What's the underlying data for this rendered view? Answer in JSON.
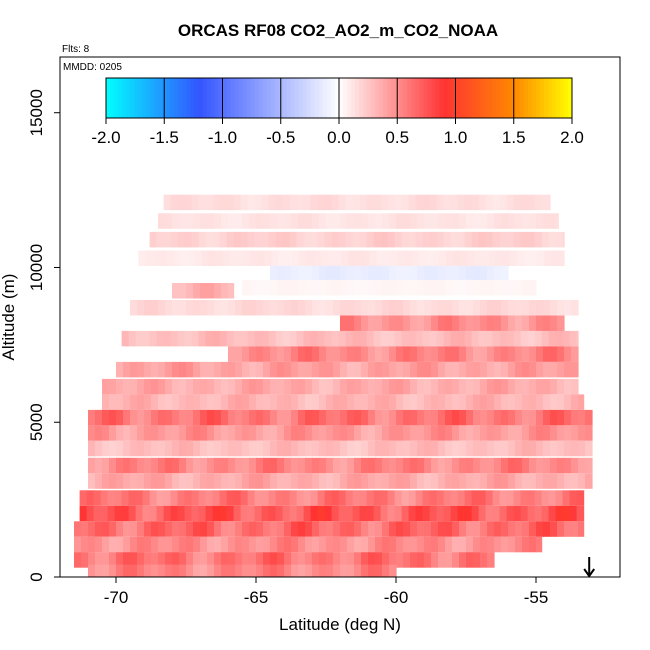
{
  "chart_data": {
    "type": "heatmap",
    "title": "ORCAS RF08 CO2_AO2_m_CO2_NOAA",
    "flights_label": "Flts: 8",
    "date_label": "MMDD: 0205",
    "xlabel": "Latitude (deg N)",
    "ylabel": "Altitude (m)",
    "xlim": [
      -72.0,
      -52.0
    ],
    "ylim": [
      0,
      16800
    ],
    "x_ticks": [
      -70,
      -65,
      -60,
      -55
    ],
    "x_tick_labels": [
      "-70",
      "-65",
      "-60",
      "-55"
    ],
    "y_ticks": [
      0,
      5000,
      10000,
      15000
    ],
    "y_tick_labels": [
      "0",
      "5000",
      "10000",
      "15000"
    ],
    "colorbar": {
      "range": [
        -2.0,
        2.0
      ],
      "ticks": [
        -2.0,
        -1.5,
        -1.0,
        -0.5,
        0.0,
        0.5,
        1.0,
        1.5,
        2.0
      ],
      "tick_labels": [
        "-2.0",
        "-1.5",
        "-1.0",
        "-0.5",
        "0.0",
        "0.5",
        "1.0",
        "1.5",
        "2.0"
      ],
      "colors": [
        "#00ffff",
        "#3355ff",
        "#ffffff",
        "#ff3333",
        "#ff8800",
        "#ffff00"
      ]
    },
    "bands": [
      {
        "lat_start": -68.3,
        "lat_end": -54.5,
        "alt": 12100,
        "value": 0.18
      },
      {
        "lat_start": -68.5,
        "lat_end": -54.2,
        "alt": 11500,
        "value": 0.15
      },
      {
        "lat_start": -68.8,
        "lat_end": -54.0,
        "alt": 10900,
        "value": 0.25
      },
      {
        "lat_start": -69.2,
        "lat_end": -54.0,
        "alt": 10300,
        "value": 0.12
      },
      {
        "lat_start": -64.5,
        "lat_end": -56.0,
        "alt": 9800,
        "value": -0.15
      },
      {
        "lat_start": -65.5,
        "lat_end": -55.0,
        "alt": 9350,
        "value": 0.05
      },
      {
        "lat_start": -68.0,
        "lat_end": -65.8,
        "alt": 9250,
        "value": 0.4
      },
      {
        "lat_start": -69.5,
        "lat_end": -53.5,
        "alt": 8700,
        "value": 0.2
      },
      {
        "lat_start": -62.0,
        "lat_end": -54.0,
        "alt": 8200,
        "value": 0.6
      },
      {
        "lat_start": -69.8,
        "lat_end": -53.5,
        "alt": 7700,
        "value": 0.35
      },
      {
        "lat_start": -66.0,
        "lat_end": -53.5,
        "alt": 7200,
        "value": 0.65
      },
      {
        "lat_start": -70.0,
        "lat_end": -53.5,
        "alt": 6700,
        "value": 0.5
      },
      {
        "lat_start": -70.5,
        "lat_end": -53.5,
        "alt": 6150,
        "value": 0.45
      },
      {
        "lat_start": -70.5,
        "lat_end": -53.3,
        "alt": 5650,
        "value": 0.4
      },
      {
        "lat_start": -71.0,
        "lat_end": -53.0,
        "alt": 5150,
        "value": 0.75
      },
      {
        "lat_start": -71.0,
        "lat_end": -53.0,
        "alt": 4650,
        "value": 0.55
      },
      {
        "lat_start": -71.0,
        "lat_end": -53.0,
        "alt": 4150,
        "value": 0.35
      },
      {
        "lat_start": -71.0,
        "lat_end": -53.0,
        "alt": 3600,
        "value": 0.65
      },
      {
        "lat_start": -71.0,
        "lat_end": -53.0,
        "alt": 3100,
        "value": 0.45
      },
      {
        "lat_start": -71.3,
        "lat_end": -53.3,
        "alt": 2550,
        "value": 0.7
      },
      {
        "lat_start": -71.3,
        "lat_end": -53.3,
        "alt": 2050,
        "value": 0.9
      },
      {
        "lat_start": -71.5,
        "lat_end": -53.3,
        "alt": 1550,
        "value": 0.8
      },
      {
        "lat_start": -71.5,
        "lat_end": -54.8,
        "alt": 1050,
        "value": 0.6
      },
      {
        "lat_start": -71.5,
        "lat_end": -56.5,
        "alt": 550,
        "value": 0.75
      },
      {
        "lat_start": -71.0,
        "lat_end": -60.0,
        "alt": 150,
        "value": 0.65
      }
    ],
    "arrow_marker": {
      "lat": -53.1,
      "direction": "down"
    }
  }
}
